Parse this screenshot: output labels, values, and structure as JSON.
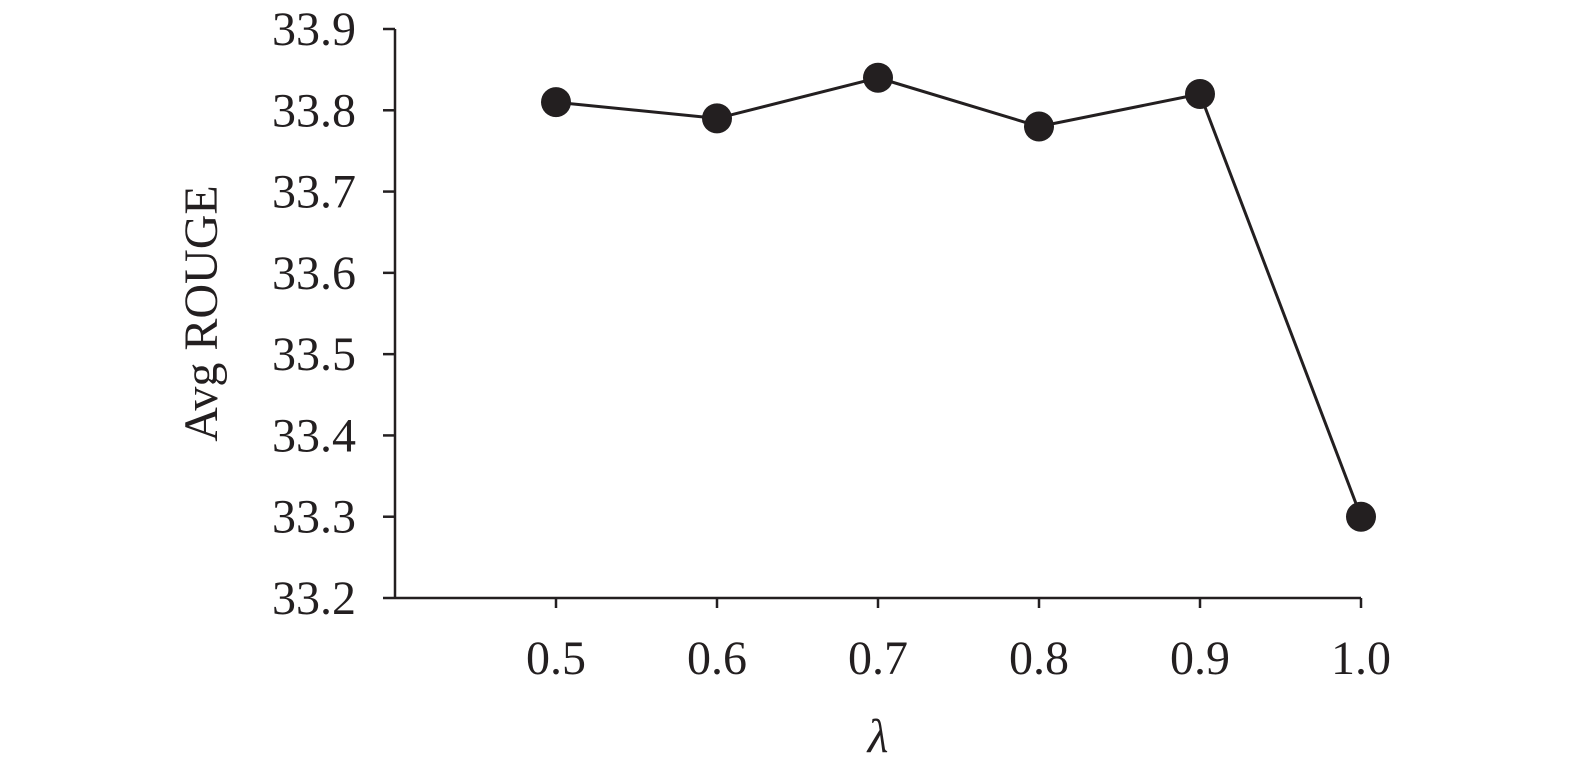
{
  "chart_data": {
    "type": "line",
    "title": "",
    "xlabel": "λ",
    "ylabel": "Avg ROUGE",
    "x": [
      0.5,
      0.6,
      0.7,
      0.8,
      0.9,
      1.0
    ],
    "x_tick_labels": [
      "0.5",
      "0.6",
      "0.7",
      "0.8",
      "0.9",
      "1.0"
    ],
    "xlim": [
      0.4,
      1.0
    ],
    "ylim": [
      33.2,
      33.9
    ],
    "y_ticks": [
      33.2,
      33.3,
      33.4,
      33.5,
      33.6,
      33.7,
      33.8,
      33.9
    ],
    "y_tick_labels": [
      "33.2",
      "33.3",
      "33.4",
      "33.5",
      "33.6",
      "33.7",
      "33.8",
      "33.9"
    ],
    "series": [
      {
        "values": [
          33.81,
          33.79,
          33.84,
          33.78,
          33.82,
          33.3
        ]
      }
    ],
    "grid": false,
    "colors": {
      "line": "#231f20",
      "marker": "#231f20",
      "axis": "#231f20"
    }
  }
}
